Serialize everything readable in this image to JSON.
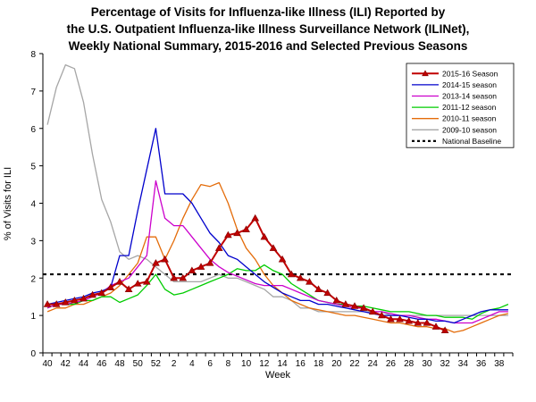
{
  "title_lines": [
    "Percentage of Visits for Influenza-like Illness (ILI) Reported by",
    "the U.S. Outpatient Influenza-like Illness Surveillance Network (ILINet),",
    "Weekly National Summary, 2015-2016 and Selected Previous Seasons"
  ],
  "colors": {
    "s2015": "#c00000",
    "s2014": "#0000cc",
    "s2013": "#cc00cc",
    "s2011": "#00cc00",
    "s2010": "#e46c0a",
    "s2009": "#a6a6a6",
    "baseline": "#000000",
    "marker": "#c00000"
  },
  "chart_data": {
    "type": "line",
    "xlabel": "Week",
    "ylabel": "% of Visits for ILI",
    "ylim": [
      0,
      8
    ],
    "yticks": [
      0,
      1,
      2,
      3,
      4,
      5,
      6,
      7,
      8
    ],
    "x_positions": 52,
    "x_tick_labels": [
      "40",
      "42",
      "44",
      "46",
      "48",
      "50",
      "52",
      "2",
      "4",
      "6",
      "8",
      "10",
      "12",
      "14",
      "16",
      "18",
      "20",
      "22",
      "24",
      "26",
      "28",
      "30",
      "32",
      "34",
      "36",
      "38"
    ],
    "grid": false,
    "legend_position": "top-right",
    "baseline": {
      "name": "National Baseline",
      "value": 2.1
    },
    "series": [
      {
        "name": "2009-10 season",
        "color_key": "s2009",
        "values": [
          6.1,
          7.1,
          7.7,
          7.6,
          6.7,
          5.3,
          4.1,
          3.5,
          2.7,
          2.5,
          2.6,
          2.5,
          2.3,
          2.1,
          1.9,
          1.9,
          1.9,
          1.9,
          2.0,
          2.1,
          2.0,
          2.0,
          1.9,
          1.8,
          1.7,
          1.5,
          1.5,
          1.4,
          1.2,
          1.2,
          1.1,
          1.1,
          1.1,
          1.1,
          1.1,
          1.1,
          1.1,
          1.1,
          1.0,
          1.0,
          1.0,
          1.0,
          1.0,
          1.0,
          1.0,
          1.0,
          1.0,
          1.0,
          1.0,
          1.0,
          1.0,
          1.0
        ]
      },
      {
        "name": "2010-11 season",
        "color_key": "s2010",
        "values": [
          1.1,
          1.2,
          1.2,
          1.3,
          1.3,
          1.4,
          1.5,
          1.6,
          1.8,
          2.1,
          2.4,
          3.1,
          3.1,
          2.5,
          3.0,
          3.6,
          4.1,
          4.5,
          4.45,
          4.55,
          4.0,
          3.3,
          2.8,
          2.5,
          2.1,
          1.8,
          1.6,
          1.4,
          1.3,
          1.2,
          1.15,
          1.1,
          1.05,
          1.0,
          1.0,
          0.95,
          0.9,
          0.85,
          0.8,
          0.8,
          0.75,
          0.7,
          0.7,
          0.65,
          0.65,
          0.55,
          0.6,
          0.7,
          0.8,
          0.9,
          1.0,
          1.05
        ]
      },
      {
        "name": "2011-12 season",
        "color_key": "s2011",
        "values": [
          1.2,
          1.3,
          1.3,
          1.3,
          1.4,
          1.4,
          1.5,
          1.5,
          1.35,
          1.45,
          1.55,
          1.8,
          2.1,
          1.7,
          1.55,
          1.6,
          1.7,
          1.8,
          1.9,
          2.0,
          2.1,
          2.25,
          2.2,
          2.2,
          2.35,
          2.2,
          2.1,
          1.85,
          1.7,
          1.55,
          1.4,
          1.35,
          1.3,
          1.3,
          1.25,
          1.25,
          1.2,
          1.15,
          1.1,
          1.1,
          1.1,
          1.05,
          1.0,
          1.0,
          0.95,
          0.95,
          0.95,
          0.9,
          1.05,
          1.15,
          1.2,
          1.3
        ]
      },
      {
        "name": "2013-14 season",
        "color_key": "s2013",
        "values": [
          1.2,
          1.3,
          1.3,
          1.35,
          1.4,
          1.5,
          1.6,
          1.8,
          1.9,
          2.0,
          2.3,
          2.6,
          4.6,
          3.6,
          3.4,
          3.4,
          3.1,
          2.8,
          2.5,
          2.3,
          2.15,
          2.05,
          1.95,
          1.85,
          1.8,
          1.8,
          1.8,
          1.7,
          1.6,
          1.5,
          1.4,
          1.35,
          1.3,
          1.25,
          1.2,
          1.2,
          1.1,
          1.1,
          1.05,
          1.0,
          1.0,
          0.95,
          0.9,
          0.9,
          0.85,
          0.8,
          0.8,
          0.8,
          0.9,
          1.0,
          1.1,
          1.1
        ]
      },
      {
        "name": "2014-15 season",
        "color_key": "s2014",
        "values": [
          1.3,
          1.35,
          1.4,
          1.45,
          1.5,
          1.6,
          1.65,
          1.75,
          2.6,
          2.6,
          3.8,
          4.9,
          6.0,
          4.25,
          4.25,
          4.25,
          4.0,
          3.6,
          3.2,
          2.95,
          2.6,
          2.5,
          2.3,
          2.1,
          1.9,
          1.75,
          1.6,
          1.5,
          1.4,
          1.4,
          1.3,
          1.3,
          1.25,
          1.2,
          1.15,
          1.1,
          1.05,
          1.0,
          1.0,
          1.0,
          0.95,
          0.9,
          0.9,
          0.85,
          0.85,
          0.8,
          0.9,
          1.0,
          1.1,
          1.15,
          1.15,
          1.15
        ]
      },
      {
        "name": "2015-16 Season",
        "color_key": "s2015",
        "markers": true,
        "values": [
          1.3,
          1.3,
          1.35,
          1.4,
          1.45,
          1.55,
          1.6,
          1.75,
          1.9,
          1.7,
          1.85,
          1.9,
          2.4,
          2.5,
          2.0,
          2.0,
          2.2,
          2.3,
          2.4,
          2.8,
          3.15,
          3.2,
          3.3,
          3.6,
          3.1,
          2.8,
          2.5,
          2.1,
          2.0,
          1.9,
          1.7,
          1.6,
          1.4,
          1.3,
          1.25,
          1.2,
          1.1,
          1.0,
          0.9,
          0.9,
          0.85,
          0.8,
          0.8,
          0.7,
          0.6
        ]
      }
    ]
  }
}
